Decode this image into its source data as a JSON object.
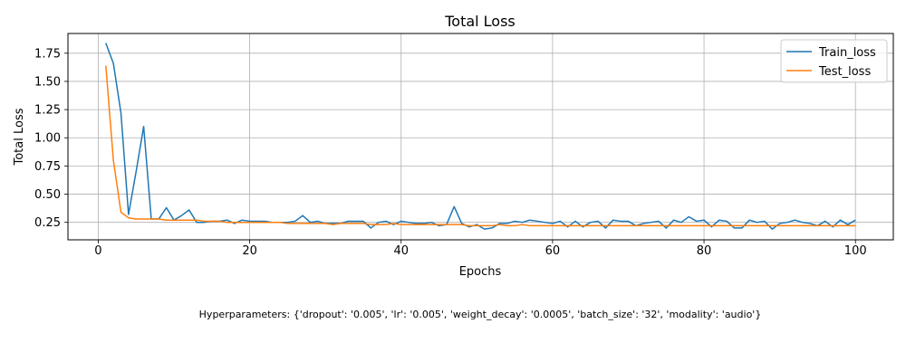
{
  "chart_data": {
    "type": "line",
    "title": "Total Loss",
    "xlabel": "Epochs",
    "ylabel": "Total Loss",
    "xlim": [
      -4,
      105
    ],
    "ylim": [
      0.095,
      1.925
    ],
    "xticks": [
      0,
      20,
      40,
      60,
      80,
      100
    ],
    "yticks": [
      0.25,
      0.5,
      0.75,
      1.0,
      1.25,
      1.5,
      1.75
    ],
    "xtick_labels": [
      "0",
      "20",
      "40",
      "60",
      "80",
      "100"
    ],
    "ytick_labels": [
      "0.25",
      "0.50",
      "0.75",
      "1.00",
      "1.25",
      "1.50",
      "1.75"
    ],
    "grid": true,
    "legend_position": "top-right",
    "x": [
      1,
      2,
      3,
      4,
      5,
      6,
      7,
      8,
      9,
      10,
      11,
      12,
      13,
      14,
      15,
      16,
      17,
      18,
      19,
      20,
      21,
      22,
      23,
      24,
      25,
      26,
      27,
      28,
      29,
      30,
      31,
      32,
      33,
      34,
      35,
      36,
      37,
      38,
      39,
      40,
      41,
      42,
      43,
      44,
      45,
      46,
      47,
      48,
      49,
      50,
      51,
      52,
      53,
      54,
      55,
      56,
      57,
      58,
      59,
      60,
      61,
      62,
      63,
      64,
      65,
      66,
      67,
      68,
      69,
      70,
      71,
      72,
      73,
      74,
      75,
      76,
      77,
      78,
      79,
      80,
      81,
      82,
      83,
      84,
      85,
      86,
      87,
      88,
      89,
      90,
      91,
      92,
      93,
      94,
      95,
      96,
      97,
      98,
      99,
      100
    ],
    "series": [
      {
        "name": "Train_loss",
        "color": "#1f77b4",
        "values": [
          1.84,
          1.66,
          1.22,
          0.32,
          0.7,
          1.1,
          0.28,
          0.28,
          0.38,
          0.27,
          0.31,
          0.36,
          0.25,
          0.25,
          0.26,
          0.26,
          0.27,
          0.24,
          0.27,
          0.26,
          0.26,
          0.26,
          0.25,
          0.25,
          0.25,
          0.26,
          0.31,
          0.25,
          0.26,
          0.24,
          0.24,
          0.24,
          0.26,
          0.26,
          0.26,
          0.2,
          0.25,
          0.26,
          0.23,
          0.26,
          0.25,
          0.24,
          0.24,
          0.25,
          0.22,
          0.23,
          0.39,
          0.24,
          0.21,
          0.23,
          0.19,
          0.2,
          0.24,
          0.24,
          0.26,
          0.25,
          0.27,
          0.26,
          0.25,
          0.24,
          0.26,
          0.21,
          0.26,
          0.21,
          0.25,
          0.26,
          0.2,
          0.27,
          0.26,
          0.26,
          0.22,
          0.24,
          0.25,
          0.26,
          0.2,
          0.27,
          0.25,
          0.3,
          0.26,
          0.27,
          0.21,
          0.27,
          0.26,
          0.2,
          0.2,
          0.27,
          0.25,
          0.26,
          0.19,
          0.24,
          0.25,
          0.27,
          0.25,
          0.24,
          0.22,
          0.26,
          0.21,
          0.27,
          0.23,
          0.27
        ]
      },
      {
        "name": "Test_loss",
        "color": "#ff7f0e",
        "values": [
          1.64,
          0.8,
          0.34,
          0.29,
          0.28,
          0.28,
          0.28,
          0.28,
          0.27,
          0.27,
          0.27,
          0.27,
          0.27,
          0.26,
          0.26,
          0.26,
          0.25,
          0.25,
          0.25,
          0.25,
          0.25,
          0.25,
          0.25,
          0.25,
          0.24,
          0.24,
          0.24,
          0.24,
          0.24,
          0.24,
          0.23,
          0.24,
          0.24,
          0.24,
          0.24,
          0.23,
          0.23,
          0.23,
          0.24,
          0.23,
          0.23,
          0.23,
          0.23,
          0.23,
          0.23,
          0.23,
          0.23,
          0.23,
          0.22,
          0.22,
          0.22,
          0.22,
          0.23,
          0.22,
          0.22,
          0.23,
          0.22,
          0.22,
          0.22,
          0.22,
          0.22,
          0.22,
          0.22,
          0.22,
          0.22,
          0.22,
          0.22,
          0.22,
          0.22,
          0.22,
          0.22,
          0.22,
          0.22,
          0.22,
          0.22,
          0.22,
          0.22,
          0.22,
          0.22,
          0.22,
          0.22,
          0.22,
          0.22,
          0.22,
          0.22,
          0.22,
          0.22,
          0.22,
          0.22,
          0.22,
          0.22,
          0.22,
          0.22,
          0.22,
          0.22,
          0.22,
          0.22,
          0.22,
          0.22,
          0.22
        ]
      }
    ]
  },
  "caption": "Hyperparameters: {'dropout': '0.005', 'lr': '0.005', 'weight_decay': '0.0005', 'batch_size': '32', 'modality': 'audio'}",
  "colors": {
    "grid": "#b0b0b0",
    "axes": "#000000",
    "legend_border": "#cccccc"
  }
}
